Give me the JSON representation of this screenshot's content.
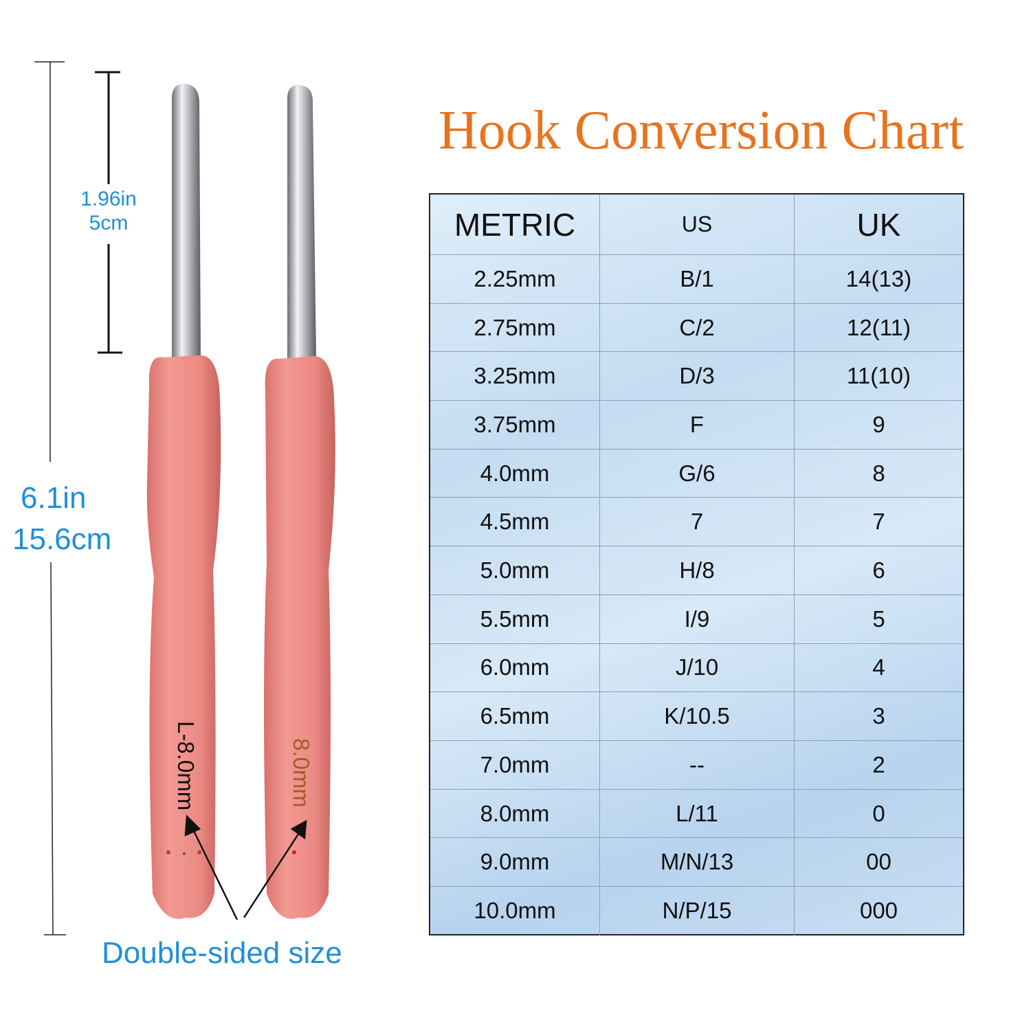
{
  "title": "Hook Conversion Chart",
  "table": {
    "headers": [
      "METRIC",
      "US",
      "UK"
    ],
    "rows": [
      [
        "2.25mm",
        "B/1",
        "14(13)"
      ],
      [
        "2.75mm",
        "C/2",
        "12(11)"
      ],
      [
        "3.25mm",
        "D/3",
        "11(10)"
      ],
      [
        "3.75mm",
        "F",
        "9"
      ],
      [
        "4.0mm",
        "G/6",
        "8"
      ],
      [
        "4.5mm",
        "7",
        "7"
      ],
      [
        "5.0mm",
        "H/8",
        "6"
      ],
      [
        "5.5mm",
        "I/9",
        "5"
      ],
      [
        "6.0mm",
        "J/10",
        "4"
      ],
      [
        "6.5mm",
        "K/10.5",
        "3"
      ],
      [
        "7.0mm",
        "--",
        "2"
      ],
      [
        "8.0mm",
        "L/11",
        "0"
      ],
      [
        "9.0mm",
        "M/N/13",
        "00"
      ],
      [
        "10.0mm",
        "N/P/15",
        "000"
      ]
    ]
  },
  "dimensions": {
    "total_in": "6.1in",
    "total_cm": "15.6cm",
    "head_in": "1.96in",
    "head_cm": "5cm"
  },
  "hooks": {
    "left_label": "L-8.0mm",
    "right_label": "8.0mm",
    "caption": "Double-sided size",
    "handle_color": "#ec8a84",
    "shaft_color": "#c8c8cc",
    "accent_blue": "#1e8fd8",
    "accent_orange": "#e8731e"
  }
}
